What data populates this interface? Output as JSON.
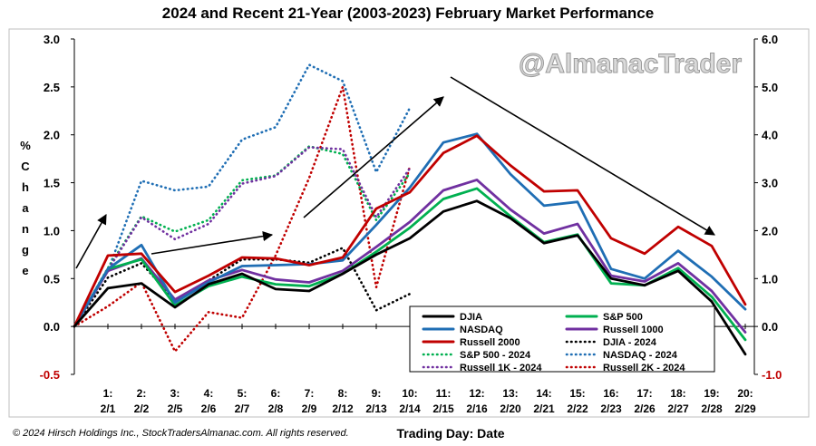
{
  "chart_data": {
    "type": "line",
    "title": "2024 and Recent 21-Year (2003-2023) February Market Performance",
    "ylabel": "% Change",
    "xlabel": "Trading Day: Date",
    "watermark": "@AlmanacTrader",
    "copyright": "© 2024 Hirsch Holdings Inc., StockTradersAlmanac.com. All rights reserved.",
    "left_axis": {
      "ylim": [
        -0.5,
        3.0
      ],
      "ticks": [
        "-0.5",
        "0.0",
        "0.5",
        "1.0",
        "1.5",
        "2.0",
        "2.5",
        "3.0"
      ],
      "color": "#000000"
    },
    "right_axis": {
      "ylim": [
        -1.0,
        6.0
      ],
      "ticks": [
        "-1.0",
        "0.0",
        "1.0",
        "2.0",
        "3.0",
        "4.0",
        "5.0",
        "6.0"
      ],
      "color": "#c00000"
    },
    "x_tick_days": [
      "1:",
      "2:",
      "3:",
      "4:",
      "5:",
      "6:",
      "7:",
      "8:",
      "9:",
      "10:",
      "11:",
      "12:",
      "13:",
      "14:",
      "15:",
      "16:",
      "17:",
      "18:",
      "19:",
      "20:"
    ],
    "x_tick_dates": [
      "2/1",
      "2/2",
      "2/5",
      "2/6",
      "2/7",
      "2/8",
      "2/9",
      "2/12",
      "2/13",
      "2/14",
      "2/15",
      "2/16",
      "2/20",
      "2/21",
      "2/22",
      "2/23",
      "2/26",
      "2/27",
      "2/28",
      "2/29"
    ],
    "series": [
      {
        "name": "DJIA",
        "style": "solid",
        "color": "#000000",
        "axis": "left",
        "values": [
          0.0,
          0.4,
          0.45,
          0.2,
          0.44,
          0.55,
          0.39,
          0.37,
          0.55,
          0.75,
          0.92,
          1.2,
          1.31,
          1.13,
          0.87,
          0.95,
          0.5,
          0.43,
          0.58,
          0.26,
          -0.29
        ]
      },
      {
        "name": "S&P 500",
        "style": "solid",
        "color": "#00b050",
        "axis": "left",
        "values": [
          0.0,
          0.6,
          0.7,
          0.22,
          0.42,
          0.52,
          0.44,
          0.42,
          0.55,
          0.78,
          1.03,
          1.33,
          1.44,
          1.15,
          0.88,
          0.96,
          0.45,
          0.43,
          0.61,
          0.31,
          -0.14
        ]
      },
      {
        "name": "NASDAQ",
        "style": "solid",
        "color": "#1f6eb4",
        "axis": "left",
        "values": [
          0.0,
          0.6,
          0.85,
          0.25,
          0.46,
          0.63,
          0.64,
          0.65,
          0.69,
          1.06,
          1.45,
          1.92,
          2.01,
          1.59,
          1.26,
          1.3,
          0.6,
          0.5,
          0.79,
          0.52,
          0.18
        ]
      },
      {
        "name": "Russell 1000",
        "style": "solid",
        "color": "#7030a0",
        "axis": "left",
        "values": [
          0.0,
          0.58,
          0.71,
          0.28,
          0.48,
          0.59,
          0.49,
          0.46,
          0.58,
          0.83,
          1.09,
          1.42,
          1.53,
          1.22,
          0.97,
          1.07,
          0.53,
          0.47,
          0.66,
          0.37,
          -0.06
        ]
      },
      {
        "name": "Russell 2000",
        "style": "solid",
        "color": "#c00000",
        "axis": "left",
        "values": [
          0.0,
          0.74,
          0.76,
          0.36,
          0.53,
          0.72,
          0.71,
          0.64,
          0.72,
          1.23,
          1.4,
          1.81,
          1.99,
          1.68,
          1.41,
          1.42,
          0.92,
          0.76,
          1.04,
          0.84,
          0.23
        ]
      },
      {
        "name": "DJIA - 2024",
        "style": "dotted",
        "color": "#000000",
        "axis": "right",
        "values": [
          0.0,
          1.02,
          1.32,
          0.55,
          0.96,
          1.4,
          1.4,
          1.33,
          1.64,
          0.34,
          0.68
        ]
      },
      {
        "name": "S&P 500 - 2024",
        "style": "dotted",
        "color": "#00b050",
        "axis": "right",
        "values": [
          0.0,
          1.22,
          2.3,
          1.98,
          2.22,
          3.05,
          3.15,
          3.76,
          3.6,
          2.22,
          3.2
        ]
      },
      {
        "name": "NASDAQ - 2024",
        "style": "dotted",
        "color": "#1f6eb4",
        "axis": "right",
        "values": [
          0.0,
          1.16,
          3.04,
          2.84,
          2.92,
          3.9,
          4.16,
          5.46,
          5.12,
          3.22,
          4.56
        ]
      },
      {
        "name": "Russell 1K - 2024",
        "style": "dotted",
        "color": "#7030a0",
        "axis": "right",
        "values": [
          0.0,
          1.18,
          2.28,
          1.82,
          2.14,
          2.98,
          3.14,
          3.74,
          3.7,
          2.28,
          3.3
        ]
      },
      {
        "name": "Russell 2K - 2024",
        "style": "dotted",
        "color": "#c00000",
        "axis": "right",
        "values": [
          0.0,
          0.42,
          0.92,
          -0.52,
          0.3,
          0.18,
          1.48,
          3.1,
          5.0,
          0.82,
          3.34
        ]
      }
    ],
    "legend_order": [
      "DJIA",
      "S&P 500",
      "NASDAQ",
      "Russell 1000",
      "Russell 2000",
      "DJIA - 2024",
      "S&P 500 - 2024",
      "NASDAQ - 2024",
      "Russell 1K - 2024",
      "Russell 2K - 2024"
    ],
    "legend_position": "lower-right",
    "grid": false
  }
}
